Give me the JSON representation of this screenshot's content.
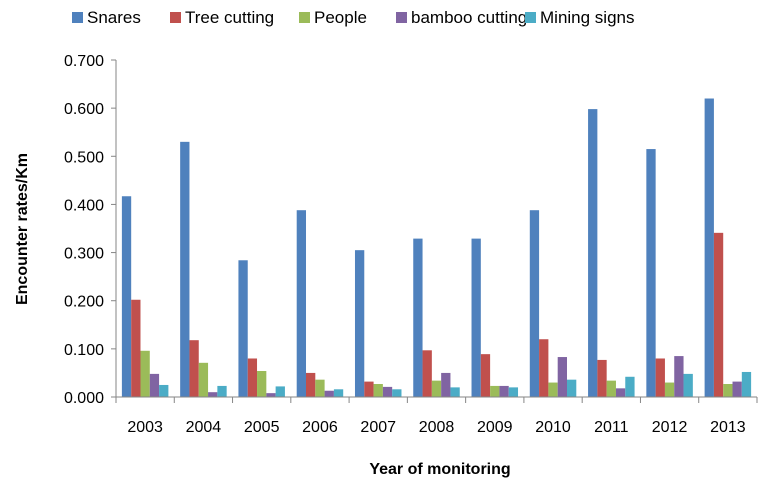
{
  "chart_data": {
    "type": "bar",
    "xlabel": "Year of monitoring",
    "ylabel": "Encounter rates/Km",
    "ylim": [
      0,
      0.7
    ],
    "yticks": [
      "0.000",
      "0.100",
      "0.200",
      "0.300",
      "0.400",
      "0.500",
      "0.600",
      "0.700"
    ],
    "legend_position": "top",
    "grid": false,
    "categories": [
      "2003",
      "2004",
      "2005",
      "2006",
      "2007",
      "2008",
      "2009",
      "2010",
      "2011",
      "2012",
      "2013"
    ],
    "series": [
      {
        "name": "Snares",
        "color": "#4F81BD",
        "values": [
          0.417,
          0.53,
          0.284,
          0.388,
          0.305,
          0.329,
          0.329,
          0.388,
          0.598,
          0.515,
          0.62
        ]
      },
      {
        "name": "Tree cutting",
        "color": "#C0504D",
        "values": [
          0.202,
          0.118,
          0.08,
          0.05,
          0.032,
          0.097,
          0.089,
          0.12,
          0.077,
          0.08,
          0.341
        ]
      },
      {
        "name": "People",
        "color": "#9BBB59",
        "values": [
          0.096,
          0.071,
          0.054,
          0.036,
          0.027,
          0.034,
          0.023,
          0.03,
          0.034,
          0.03,
          0.027
        ]
      },
      {
        "name": "bamboo cutting",
        "color": "#8064A2",
        "values": [
          0.048,
          0.01,
          0.008,
          0.013,
          0.021,
          0.05,
          0.023,
          0.083,
          0.018,
          0.085,
          0.032
        ]
      },
      {
        "name": "Mining signs",
        "color": "#4BACC6",
        "values": [
          0.025,
          0.023,
          0.022,
          0.016,
          0.016,
          0.02,
          0.02,
          0.036,
          0.042,
          0.048,
          0.052
        ]
      }
    ]
  }
}
